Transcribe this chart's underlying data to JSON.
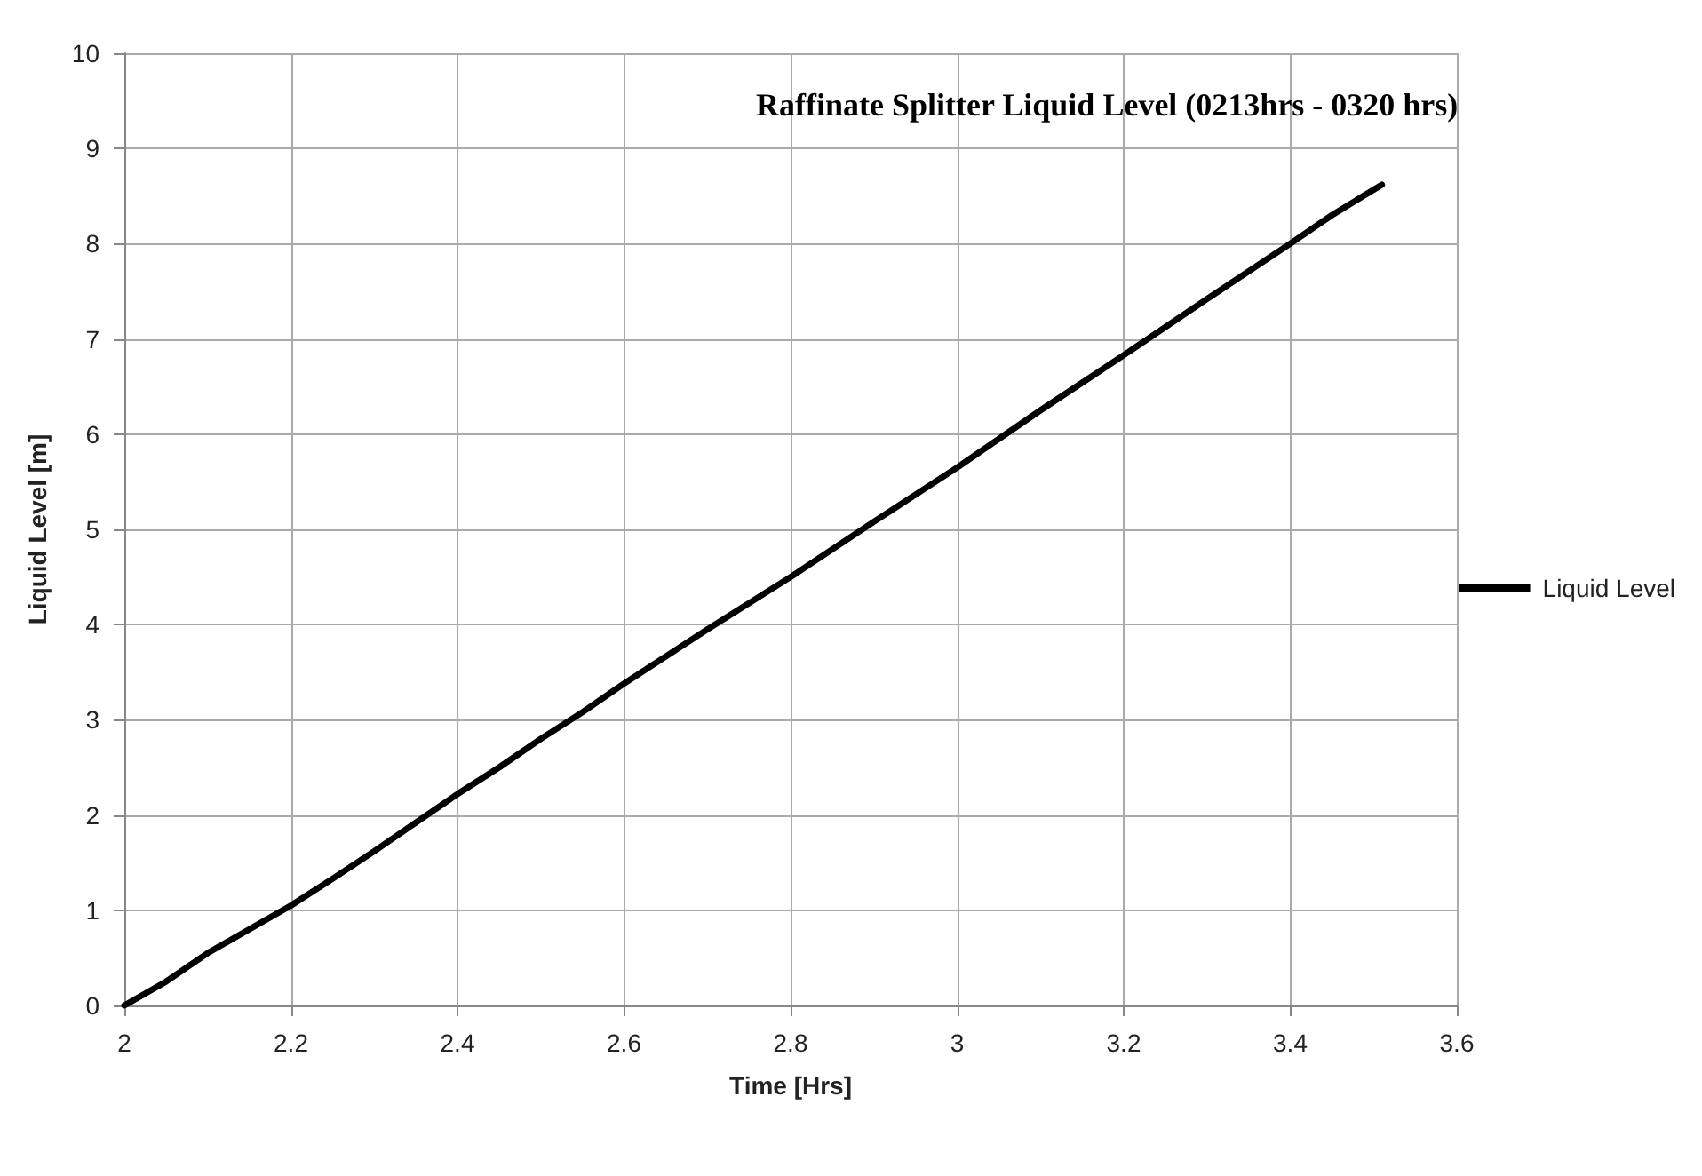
{
  "chart_data": {
    "type": "line",
    "title": "Raffinate Splitter Liquid Level (0213hrs - 0320 hrs)",
    "xlabel": "Time [Hrs]",
    "ylabel": "Liquid Level [m]",
    "x": [
      2,
      2.05,
      2.1,
      2.15,
      2.2,
      2.25,
      2.3,
      2.35,
      2.4,
      2.45,
      2.5,
      2.55,
      2.6,
      2.7,
      2.8,
      2.9,
      3,
      3.1,
      3.2,
      3.3,
      3.4,
      3.45,
      3.51
    ],
    "series": [
      {
        "name": "Liquid Level",
        "color": "#000000",
        "values": [
          0,
          0.25,
          0.55,
          0.8,
          1.05,
          1.33,
          1.62,
          1.92,
          2.22,
          2.5,
          2.8,
          3.08,
          3.38,
          3.95,
          4.5,
          5.08,
          5.65,
          6.25,
          6.83,
          7.42,
          8.0,
          8.3,
          8.62
        ]
      }
    ],
    "xlim": [
      2,
      3.6
    ],
    "xticks": [
      2,
      2.2,
      2.4,
      2.6,
      2.8,
      3,
      3.2,
      3.4,
      3.6
    ],
    "ylim": [
      0,
      10
    ],
    "yticks": [
      0,
      1,
      2,
      3,
      4,
      5,
      6,
      7,
      8,
      9,
      10
    ],
    "grid": true,
    "legend": "right",
    "marker": "none",
    "line_style": "solid"
  }
}
